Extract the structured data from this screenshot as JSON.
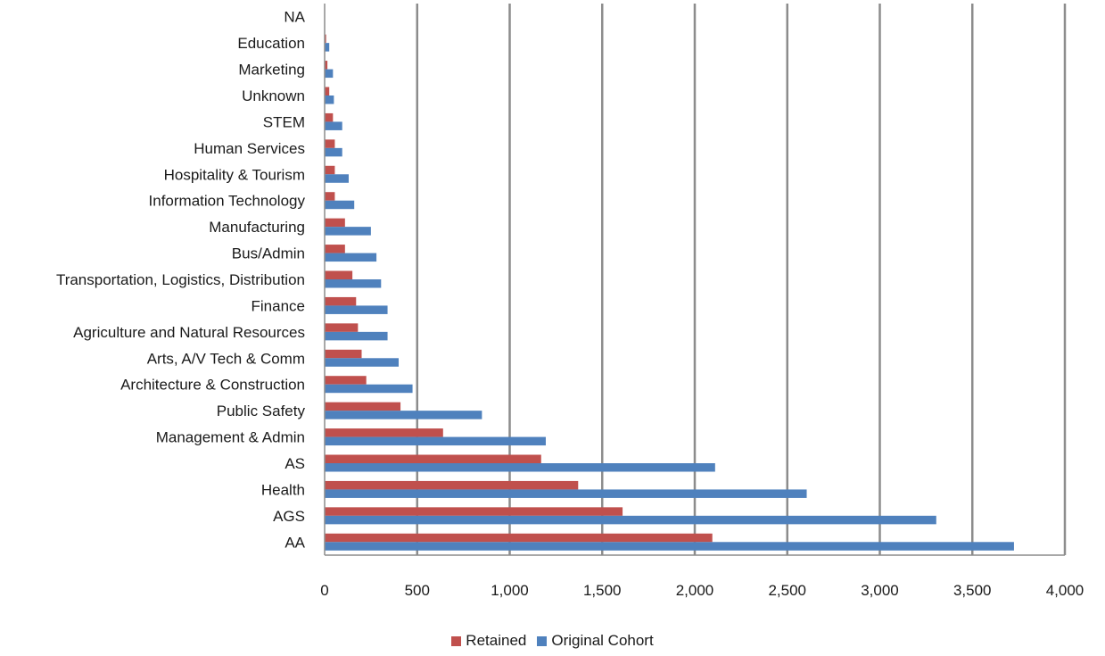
{
  "chart_data": {
    "type": "bar",
    "orientation": "horizontal",
    "categories": [
      "AA",
      "AGS",
      "Health",
      "AS",
      "Management & Admin",
      "Public Safety",
      "Architecture & Construction",
      "Arts, A/V Tech & Comm",
      "Agriculture and Natural Resources",
      "Finance",
      "Transportation, Logistics, Distribution",
      "Bus/Admin",
      "Manufacturing",
      "Information Technology",
      "Hospitality & Tourism",
      "Human Services",
      "STEM",
      "Unknown",
      "Marketing",
      "Education",
      "NA"
    ],
    "series": [
      {
        "name": "Retained",
        "color": "#C0504D",
        "values": [
          2095,
          1610,
          1370,
          1170,
          640,
          410,
          225,
          200,
          180,
          170,
          150,
          110,
          110,
          55,
          55,
          55,
          45,
          25,
          15,
          8,
          0
        ]
      },
      {
        "name": "Original Cohort",
        "color": "#4F81BD",
        "values": [
          3725,
          3305,
          2605,
          2110,
          1195,
          850,
          475,
          400,
          340,
          340,
          305,
          280,
          250,
          160,
          130,
          95,
          95,
          50,
          45,
          25,
          0
        ]
      }
    ],
    "xlim": [
      0,
      4000
    ],
    "xticks": [
      0,
      500,
      1000,
      1500,
      2000,
      2500,
      3000,
      3500,
      4000
    ],
    "xtick_labels": [
      "0",
      "500",
      "1,000",
      "1,500",
      "2,000",
      "2,500",
      "3,000",
      "3,500",
      "4,000"
    ],
    "grid": "vertical",
    "legend": "bottom",
    "title": "",
    "xlabel": "",
    "ylabel": ""
  }
}
